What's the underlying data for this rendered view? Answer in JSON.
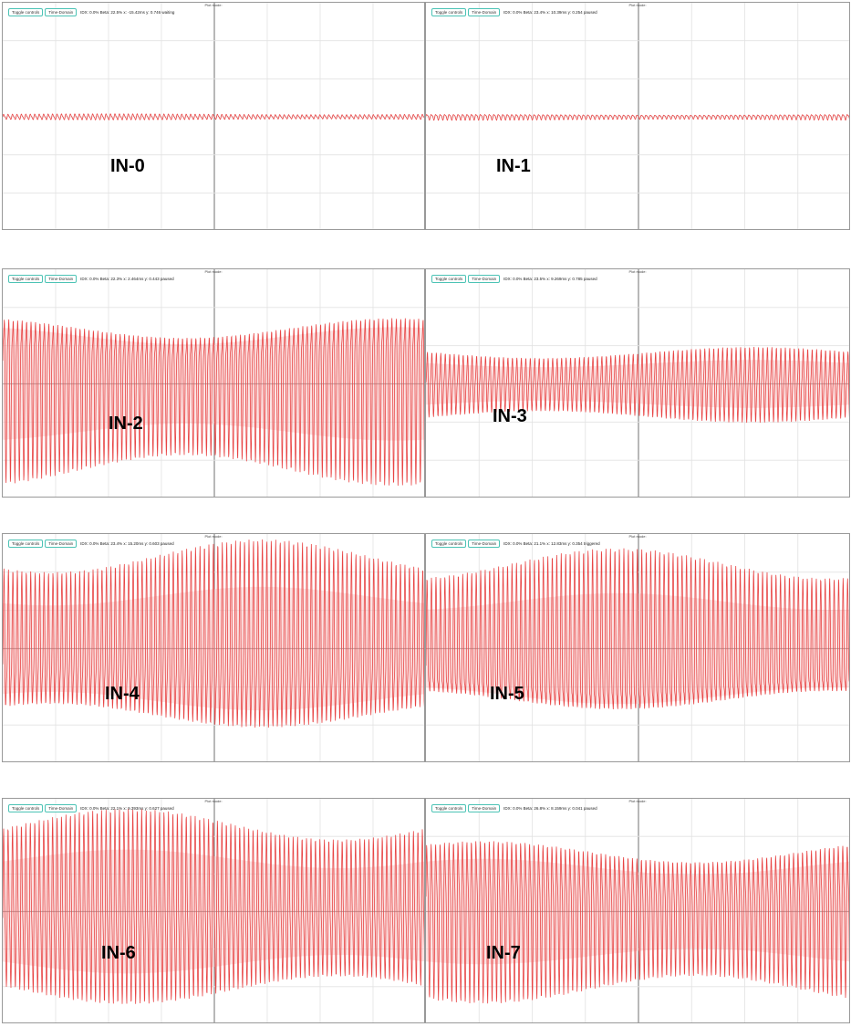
{
  "panels": [
    {
      "label": "IN-0",
      "plot_mode": "Plot mode:",
      "buttons": [
        "Toggle controls",
        "Time-Domain"
      ],
      "status": "IDX: 0.0% Beta: 22.5% x: -15.42ms y: 0.746 waiting"
    },
    {
      "label": "IN-1",
      "plot_mode": "Plot mode:",
      "buttons": [
        "Toggle controls",
        "Time-Domain"
      ],
      "status": "IDX: 0.0% Beta: 23.4% x: 10.39ms y: 0.254 paused"
    },
    {
      "label": "IN-2",
      "plot_mode": "Plot mode:",
      "buttons": [
        "Toggle controls",
        "Time-Domain"
      ],
      "status": "IDX: 0.0% Beta: 22.3% x: 2.464ms y: 0.443 paused"
    },
    {
      "label": "IN-3",
      "plot_mode": "Plot mode:",
      "buttons": [
        "Toggle controls",
        "Time-Domain"
      ],
      "status": "IDX: 0.0% Beta: 23.5% x: 9.269ms y: 0.785 paused"
    },
    {
      "label": "IN-4",
      "plot_mode": "Plot mode:",
      "buttons": [
        "Toggle controls",
        "Time-Domain"
      ],
      "status": "IDX: 0.0% Beta: 23.4% x: 15.20ms y: 0.603 paused"
    },
    {
      "label": "IN-5",
      "plot_mode": "Plot mode:",
      "buttons": [
        "Toggle controls",
        "Time-Domain"
      ],
      "status": "IDX: 0.0% Beta: 21.1% x: 12.83ms y: 0.354 triggered"
    },
    {
      "label": "IN-6",
      "plot_mode": "Plot mode:",
      "buttons": [
        "Toggle controls",
        "Time-Domain"
      ],
      "status": "IDX: 0.0% Beta: 22.1% x: 9.393ms y: 0.627 paused"
    },
    {
      "label": "IN-7",
      "plot_mode": "Plot mode:",
      "buttons": [
        "Toggle controls",
        "Time-Domain"
      ],
      "status": "IDX: 0.0% Beta: 26.8% x: 8.159ms y: 0.041 paused"
    }
  ]
}
